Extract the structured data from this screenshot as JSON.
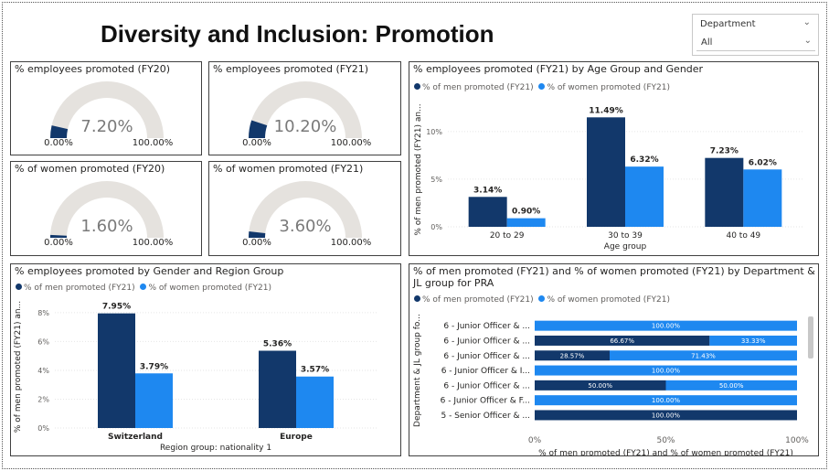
{
  "title": "Diversity and Inclusion: Promotion",
  "slicer": {
    "label": "Department",
    "value": "All"
  },
  "colors": {
    "men": "#12386b",
    "women": "#1e88f0",
    "gauge_bg": "#e5e2de",
    "text": "#252423"
  },
  "gauges": [
    {
      "title": "% employees promoted (FY20)",
      "value": 7.2,
      "value_label": "7.20%",
      "min_label": "0.00%",
      "max_label": "100.00%"
    },
    {
      "title": "% employees promoted (FY21)",
      "value": 10.2,
      "value_label": "10.20%",
      "min_label": "0.00%",
      "max_label": "100.00%"
    },
    {
      "title": "% of women promoted (FY20)",
      "value": 1.6,
      "value_label": "1.60%",
      "min_label": "0.00%",
      "max_label": "100.00%"
    },
    {
      "title": "% of women promoted (FY21)",
      "value": 3.6,
      "value_label": "3.60%",
      "min_label": "0.00%",
      "max_label": "100.00%"
    }
  ],
  "chart_data": [
    {
      "type": "bar",
      "title": "% employees promoted (FY21) by Age Group and Gender",
      "xlabel": "Age group",
      "ylabel": "% of men promoted (FY21) an...",
      "categories": [
        "20 to 29",
        "30 to 39",
        "40 to 49"
      ],
      "series": [
        {
          "name": "% of men promoted (FY21)",
          "values": [
            3.14,
            11.49,
            7.23
          ],
          "labels": [
            "3.14%",
            "11.49%",
            "7.23%"
          ]
        },
        {
          "name": "% of women promoted (FY21)",
          "values": [
            0.9,
            6.32,
            6.02
          ],
          "labels": [
            "0.90%",
            "6.32%",
            "6.02%"
          ]
        }
      ],
      "yticks": [
        0,
        5,
        10
      ],
      "ytick_labels": [
        "0%",
        "5%",
        "10%"
      ],
      "ylim": [
        0,
        12
      ]
    },
    {
      "type": "bar",
      "title": "% employees promoted by Gender and Region Group",
      "xlabel": "Region group: nationality 1",
      "ylabel": "% of men promoted (FY21) an...",
      "categories": [
        "Switzerland",
        "Europe"
      ],
      "series": [
        {
          "name": "% of men promoted (FY21)",
          "values": [
            7.95,
            5.36
          ],
          "labels": [
            "7.95%",
            "5.36%"
          ]
        },
        {
          "name": "% of women promoted (FY21)",
          "values": [
            3.79,
            3.57
          ],
          "labels": [
            "3.79%",
            "3.57%"
          ]
        }
      ],
      "yticks": [
        0,
        2,
        4,
        6,
        8
      ],
      "ytick_labels": [
        "0%",
        "2%",
        "4%",
        "6%",
        "8%"
      ],
      "ylim": [
        0,
        8.5
      ]
    },
    {
      "type": "bar",
      "stacked": "100%",
      "orientation": "horizontal",
      "title": "% of men promoted (FY21) and % of women promoted (FY21) by Department & JL group for PRA",
      "xlabel": "% of men promoted (FY21) and % of women promoted (FY21)",
      "ylabel": "Department & JL group fo...",
      "categories": [
        "6 - Junior Officer & ...",
        "6 - Junior Officer & ...",
        "6 - Junior Officer & ...",
        "6 - Junior Officer & I...",
        "6 - Junior Officer & ...",
        "6 - Junior Officer & F...",
        "5 - Senior Officer & ..."
      ],
      "series": [
        {
          "name": "% of men promoted (FY21)",
          "values": [
            0,
            66.67,
            28.57,
            0,
            50.0,
            0,
            100.0
          ],
          "labels": [
            "",
            "66.67%",
            "28.57%",
            "",
            "50.00%",
            "",
            "100.00%"
          ]
        },
        {
          "name": "% of women promoted (FY21)",
          "values": [
            100.0,
            33.33,
            71.43,
            100.0,
            50.0,
            100.0,
            0
          ],
          "labels": [
            "100.00%",
            "33.33%",
            "71.43%",
            "100.00%",
            "50.00%",
            "100.00%",
            ""
          ]
        }
      ],
      "xticks": [
        0,
        50,
        100
      ],
      "xtick_labels": [
        "0%",
        "50%",
        "100%"
      ],
      "xlim": [
        0,
        100
      ]
    }
  ]
}
